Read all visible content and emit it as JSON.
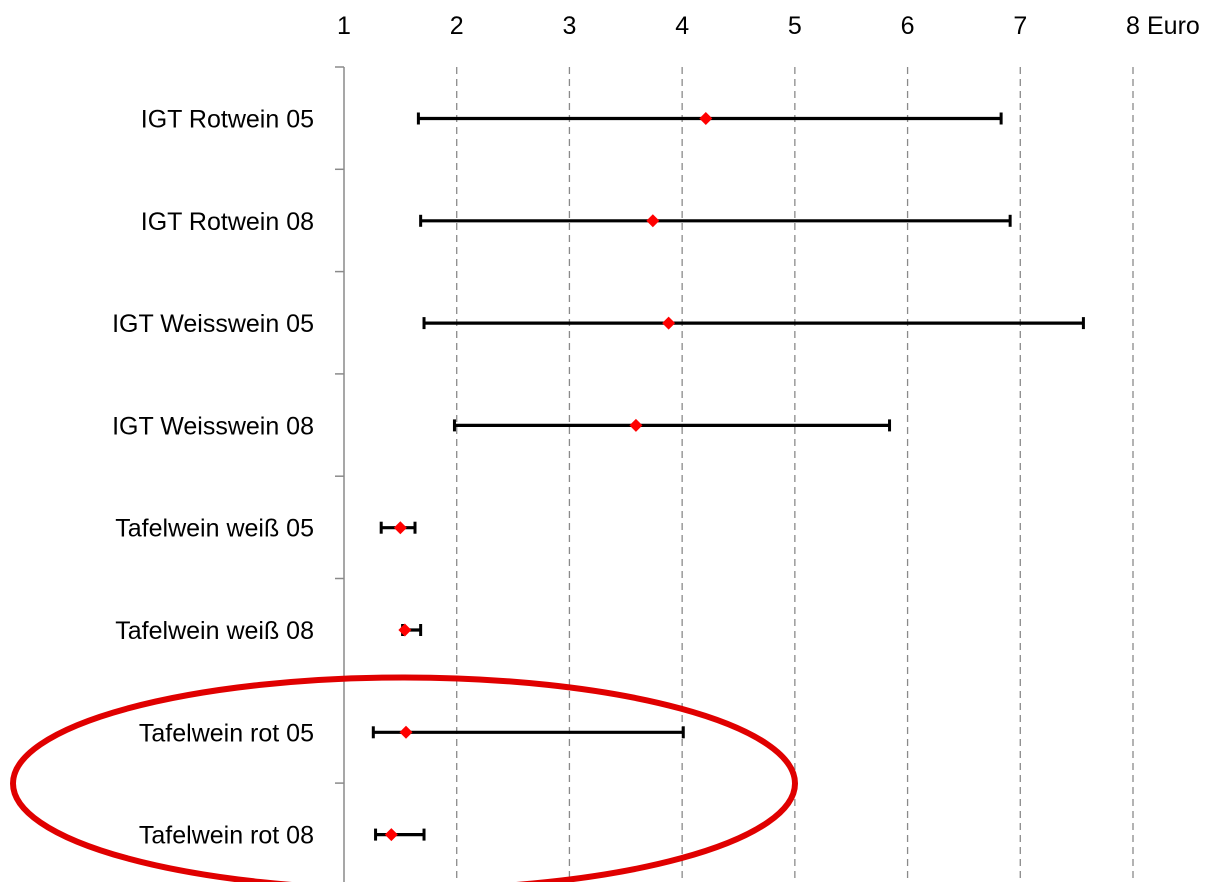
{
  "chart_data": {
    "type": "range",
    "orientation": "horizontal",
    "x_unit_label": "Euro",
    "xlim": [
      1,
      8
    ],
    "x_ticks": [
      "1",
      "2",
      "3",
      "4",
      "5",
      "6",
      "7",
      "8"
    ],
    "grid": "vertical-dashed",
    "categories": [
      "IGT Rotwein 05",
      "IGT Rotwein 08",
      "IGT Weisswein 05",
      "IGT Weisswein 08",
      "Tafelwein weiß 05",
      "Tafelwein weiß 08",
      "Tafelwein rot 05",
      "Tafelwein rot 08"
    ],
    "ranges": [
      {
        "min": 1.66,
        "mean": 4.21,
        "max": 6.83
      },
      {
        "min": 1.68,
        "mean": 3.74,
        "max": 6.91
      },
      {
        "min": 1.71,
        "mean": 3.88,
        "max": 7.56
      },
      {
        "min": 1.98,
        "mean": 3.59,
        "max": 5.84
      },
      {
        "min": 1.33,
        "mean": 1.5,
        "max": 1.63
      },
      {
        "min": 1.52,
        "mean": 1.54,
        "max": 1.68
      },
      {
        "min": 1.26,
        "mean": 1.55,
        "max": 4.01
      },
      {
        "min": 1.28,
        "mean": 1.42,
        "max": 1.71
      }
    ],
    "mean_color": "#ff0000",
    "range_color": "#000000",
    "highlight": {
      "shape": "ellipse",
      "color": "#e00000",
      "categories": [
        "Tafelwein rot 05",
        "Tafelwein rot 08"
      ]
    }
  }
}
